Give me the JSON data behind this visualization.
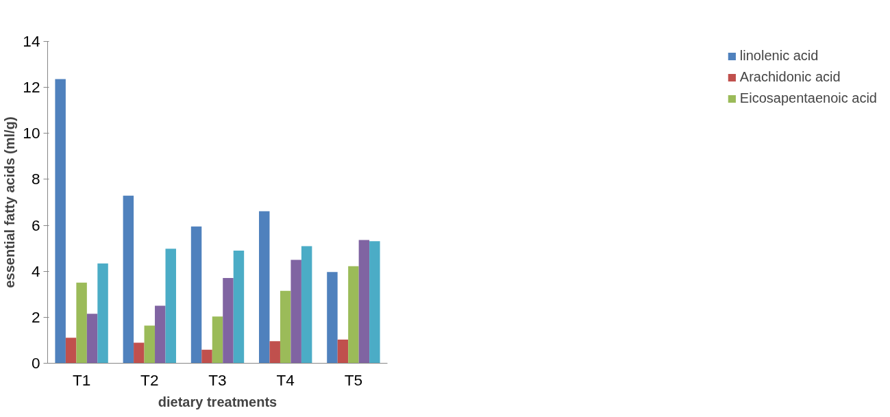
{
  "chart_data": {
    "type": "bar",
    "categories": [
      "T1",
      "T2",
      "T3",
      "T4",
      "T5"
    ],
    "xlabel": "dietary treatments",
    "ylabel": "essential fatty acids (ml/g)",
    "ylim": [
      0,
      14
    ],
    "yticks": [
      0,
      2,
      4,
      6,
      8,
      10,
      12,
      14
    ],
    "grid": false,
    "legend": "right",
    "series": [
      {
        "name": "linolenic acid",
        "color": "#4f81bd",
        "values": [
          12.36,
          7.29,
          5.95,
          6.61,
          3.97
        ]
      },
      {
        "name": "Arachidonic acid",
        "color": "#c0504d",
        "values": [
          1.11,
          0.89,
          0.59,
          0.96,
          1.03
        ]
      },
      {
        "name": "Eicosapentaenoic acid",
        "color": "#9bbb59",
        "values": [
          3.51,
          1.64,
          2.03,
          3.15,
          4.22
        ]
      },
      {
        "color": "#8064a2",
        "values": [
          2.15,
          2.5,
          3.71,
          4.5,
          5.36
        ]
      },
      {
        "color": "#4bacc6",
        "values": [
          4.34,
          4.98,
          4.9,
          5.09,
          5.31
        ]
      }
    ]
  }
}
